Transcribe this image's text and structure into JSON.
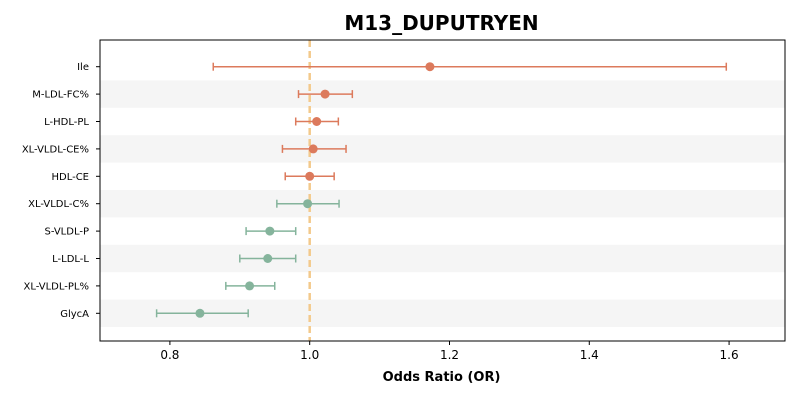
{
  "chart_data": {
    "type": "forest",
    "title": "M13_DUPUTRYEN",
    "xlabel": "Odds Ratio (OR)",
    "xlim": [
      0.7,
      1.68
    ],
    "xticks": [
      0.8,
      1.0,
      1.2,
      1.4,
      1.6
    ],
    "xtick_labels": [
      "0.8",
      "1.0",
      "1.2",
      "1.4",
      "1.6"
    ],
    "reference_line": 1.0,
    "categories": [
      "Ile",
      "M-LDL-FC%",
      "L-HDL-PL",
      "XL-VLDL-CE%",
      "HDL-CE",
      "XL-VLDL-C%",
      "S-VLDL-P",
      "L-LDL-L",
      "XL-VLDL-PL%",
      "GlycA"
    ],
    "points": [
      {
        "label": "Ile",
        "or": 1.172,
        "lower": 0.862,
        "upper": 1.596,
        "direction": "positive"
      },
      {
        "label": "M-LDL-FC%",
        "or": 1.022,
        "lower": 0.984,
        "upper": 1.061,
        "direction": "positive"
      },
      {
        "label": "L-HDL-PL",
        "or": 1.01,
        "lower": 0.98,
        "upper": 1.041,
        "direction": "positive"
      },
      {
        "label": "XL-VLDL-CE%",
        "or": 1.005,
        "lower": 0.961,
        "upper": 1.052,
        "direction": "positive"
      },
      {
        "label": "HDL-CE",
        "or": 1.0,
        "lower": 0.965,
        "upper": 1.035,
        "direction": "positive"
      },
      {
        "label": "XL-VLDL-C%",
        "or": 0.997,
        "lower": 0.953,
        "upper": 1.042,
        "direction": "negative"
      },
      {
        "label": "S-VLDL-P",
        "or": 0.943,
        "lower": 0.909,
        "upper": 0.98,
        "direction": "negative"
      },
      {
        "label": "L-LDL-L",
        "or": 0.94,
        "lower": 0.9,
        "upper": 0.98,
        "direction": "negative"
      },
      {
        "label": "XL-VLDL-PL%",
        "or": 0.914,
        "lower": 0.88,
        "upper": 0.95,
        "direction": "negative"
      },
      {
        "label": "GlycA",
        "or": 0.843,
        "lower": 0.781,
        "upper": 0.912,
        "direction": "negative"
      }
    ],
    "colors": {
      "positive": "#dc7a5c",
      "negative": "#85b49c",
      "reference_line": "#f3c98b",
      "band": "#f5f5f5"
    },
    "grid": false
  }
}
